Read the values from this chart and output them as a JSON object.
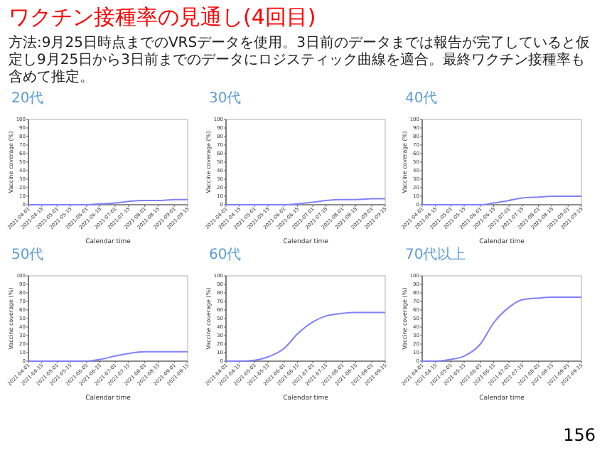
{
  "chart_data": [
    {
      "type": "other",
      "title": "ワクチン接種率の見通し(4回目)",
      "subtitle": "方法:9月25日時点までのVRSデータを使用。3日前のデータまでは報告が完了していると仮定し9月25日から3日前までのデータにロジスティック曲線を適合。最終ワクチン接種率も含めて推定。",
      "annotations": [
        "156"
      ]
    },
    {
      "type": "line",
      "title": "20代",
      "xlabel": "Calendar time",
      "ylabel": "Vaccine coverage (%)",
      "x": [
        "2021-04-01",
        "2021-04-15",
        "2021-05-01",
        "2021-05-15",
        "2021-06-01",
        "2021-06-15",
        "2021-07-01",
        "2021-07-15",
        "2021-08-01",
        "2021-08-15",
        "2021-09-01",
        "2021-09-15"
      ],
      "xlim": [
        "2021-04-01",
        "2021-09-15"
      ],
      "xticks": [
        "2021-04-01",
        "2021-04-15",
        "2021-05-01",
        "2021-05-15",
        "2021-06-01",
        "2021-06-15",
        "2021-07-01",
        "2021-07-15",
        "2021-08-01",
        "2021-08-15",
        "2021-09-01",
        "2021-09-15"
      ],
      "ylim": [
        0,
        100
      ],
      "yticks": [
        0,
        10,
        20,
        30,
        40,
        50,
        60,
        70,
        80,
        90,
        100
      ],
      "series": [
        {
          "color": "#8080ff",
          "values": [
            0,
            0,
            0,
            0,
            0,
            1,
            2,
            4,
            5,
            5,
            6,
            6
          ]
        }
      ]
    },
    {
      "type": "line",
      "title": "30代",
      "xlabel": "Calendar time",
      "ylabel": "Vaccine coverage (%)",
      "x": [
        "2021-04-01",
        "2021-04-15",
        "2021-05-01",
        "2021-05-15",
        "2021-06-01",
        "2021-06-15",
        "2021-07-01",
        "2021-07-15",
        "2021-08-01",
        "2021-08-15",
        "2021-09-01",
        "2021-09-15"
      ],
      "xlim": [
        "2021-04-01",
        "2021-09-15"
      ],
      "xticks": [
        "2021-04-01",
        "2021-04-15",
        "2021-05-01",
        "2021-05-15",
        "2021-06-01",
        "2021-06-15",
        "2021-07-01",
        "2021-07-15",
        "2021-08-01",
        "2021-08-15",
        "2021-09-01",
        "2021-09-15"
      ],
      "ylim": [
        0,
        100
      ],
      "yticks": [
        0,
        10,
        20,
        30,
        40,
        50,
        60,
        70,
        80,
        90,
        100
      ],
      "series": [
        {
          "color": "#8080ff",
          "values": [
            0,
            0,
            0,
            0,
            0,
            1,
            3,
            5,
            6,
            6,
            7,
            7
          ]
        }
      ]
    },
    {
      "type": "line",
      "title": "40代",
      "xlabel": "Calendar time",
      "ylabel": "Vaccine coverage (%)",
      "x": [
        "2021-04-01",
        "2021-04-15",
        "2021-05-01",
        "2021-05-15",
        "2021-06-01",
        "2021-06-15",
        "2021-07-01",
        "2021-07-15",
        "2021-08-01",
        "2021-08-15",
        "2021-09-01",
        "2021-09-15"
      ],
      "xlim": [
        "2021-04-01",
        "2021-09-15"
      ],
      "xticks": [
        "2021-04-01",
        "2021-04-15",
        "2021-05-01",
        "2021-05-15",
        "2021-06-01",
        "2021-06-15",
        "2021-07-01",
        "2021-07-15",
        "2021-08-01",
        "2021-08-15",
        "2021-09-01",
        "2021-09-15"
      ],
      "ylim": [
        0,
        100
      ],
      "yticks": [
        0,
        10,
        20,
        30,
        40,
        50,
        60,
        70,
        80,
        90,
        100
      ],
      "series": [
        {
          "color": "#8080ff",
          "values": [
            0,
            0,
            0,
            0,
            0,
            2,
            5,
            8,
            9,
            10,
            10,
            10
          ]
        }
      ]
    },
    {
      "type": "line",
      "title": "50代",
      "xlabel": "Calendar time",
      "ylabel": "Vaccine coverage (%)",
      "x": [
        "2021-04-01",
        "2021-04-15",
        "2021-05-01",
        "2021-05-15",
        "2021-06-01",
        "2021-06-15",
        "2021-07-01",
        "2021-07-15",
        "2021-08-01",
        "2021-08-15",
        "2021-09-01",
        "2021-09-15"
      ],
      "xlim": [
        "2021-04-01",
        "2021-09-15"
      ],
      "xticks": [
        "2021-04-01",
        "2021-04-15",
        "2021-05-01",
        "2021-05-15",
        "2021-06-01",
        "2021-06-15",
        "2021-07-01",
        "2021-07-15",
        "2021-08-01",
        "2021-08-15",
        "2021-09-01",
        "2021-09-15"
      ],
      "ylim": [
        0,
        100
      ],
      "yticks": [
        0,
        10,
        20,
        30,
        40,
        50,
        60,
        70,
        80,
        90,
        100
      ],
      "series": [
        {
          "color": "#8080ff",
          "values": [
            0,
            0,
            0,
            0,
            0,
            2,
            6,
            9,
            11,
            11,
            11,
            11
          ]
        }
      ]
    },
    {
      "type": "line",
      "title": "60代",
      "xlabel": "Calendar time",
      "ylabel": "Vaccine coverage (%)",
      "x": [
        "2021-04-01",
        "2021-04-15",
        "2021-05-01",
        "2021-05-15",
        "2021-06-01",
        "2021-06-15",
        "2021-07-01",
        "2021-07-15",
        "2021-08-01",
        "2021-08-15",
        "2021-09-01",
        "2021-09-15"
      ],
      "xlim": [
        "2021-04-01",
        "2021-09-15"
      ],
      "xticks": [
        "2021-04-01",
        "2021-04-15",
        "2021-05-01",
        "2021-05-15",
        "2021-06-01",
        "2021-06-15",
        "2021-07-01",
        "2021-07-15",
        "2021-08-01",
        "2021-08-15",
        "2021-09-01",
        "2021-09-15"
      ],
      "ylim": [
        0,
        100
      ],
      "yticks": [
        0,
        10,
        20,
        30,
        40,
        50,
        60,
        70,
        80,
        90,
        100
      ],
      "series": [
        {
          "color": "#8080ff",
          "values": [
            0,
            0,
            1,
            5,
            15,
            32,
            46,
            53,
            56,
            57,
            57,
            57
          ]
        }
      ]
    },
    {
      "type": "line",
      "title": "70代以上",
      "xlabel": "Calendar time",
      "ylabel": "Vaccine coverage (%)",
      "x": [
        "2021-04-01",
        "2021-04-15",
        "2021-05-01",
        "2021-05-15",
        "2021-06-01",
        "2021-06-15",
        "2021-07-01",
        "2021-07-15",
        "2021-08-01",
        "2021-08-15",
        "2021-09-01",
        "2021-09-15"
      ],
      "xlim": [
        "2021-04-01",
        "2021-09-15"
      ],
      "xticks": [
        "2021-04-01",
        "2021-04-15",
        "2021-05-01",
        "2021-05-15",
        "2021-06-01",
        "2021-06-15",
        "2021-07-01",
        "2021-07-15",
        "2021-08-01",
        "2021-08-15",
        "2021-09-01",
        "2021-09-15"
      ],
      "ylim": [
        0,
        100
      ],
      "yticks": [
        0,
        10,
        20,
        30,
        40,
        50,
        60,
        70,
        80,
        90,
        100
      ],
      "series": [
        {
          "color": "#8080ff",
          "values": [
            0,
            0,
            2,
            6,
            20,
            45,
            63,
            72,
            74,
            75,
            75,
            75
          ]
        }
      ]
    }
  ]
}
